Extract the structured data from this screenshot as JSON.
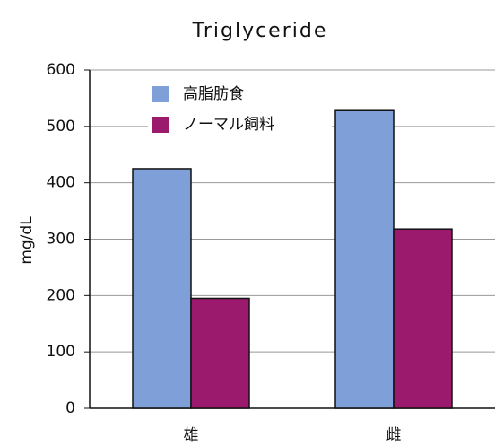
{
  "chart_data": {
    "type": "bar",
    "title": "Triglyceride",
    "ylabel": "mg/dL",
    "categories": [
      "雄",
      "雌"
    ],
    "series": [
      {
        "name": "高脂肪食",
        "color": "#7f9fd8",
        "values": [
          425,
          528
        ]
      },
      {
        "name": "ノーマル飼料",
        "color": "#9c1a6e",
        "values": [
          195,
          318
        ]
      }
    ],
    "ylim": [
      0,
      600
    ],
    "yticks": [
      0,
      100,
      200,
      300,
      400,
      500,
      600
    ],
    "grid": true,
    "legend": "upper left"
  }
}
